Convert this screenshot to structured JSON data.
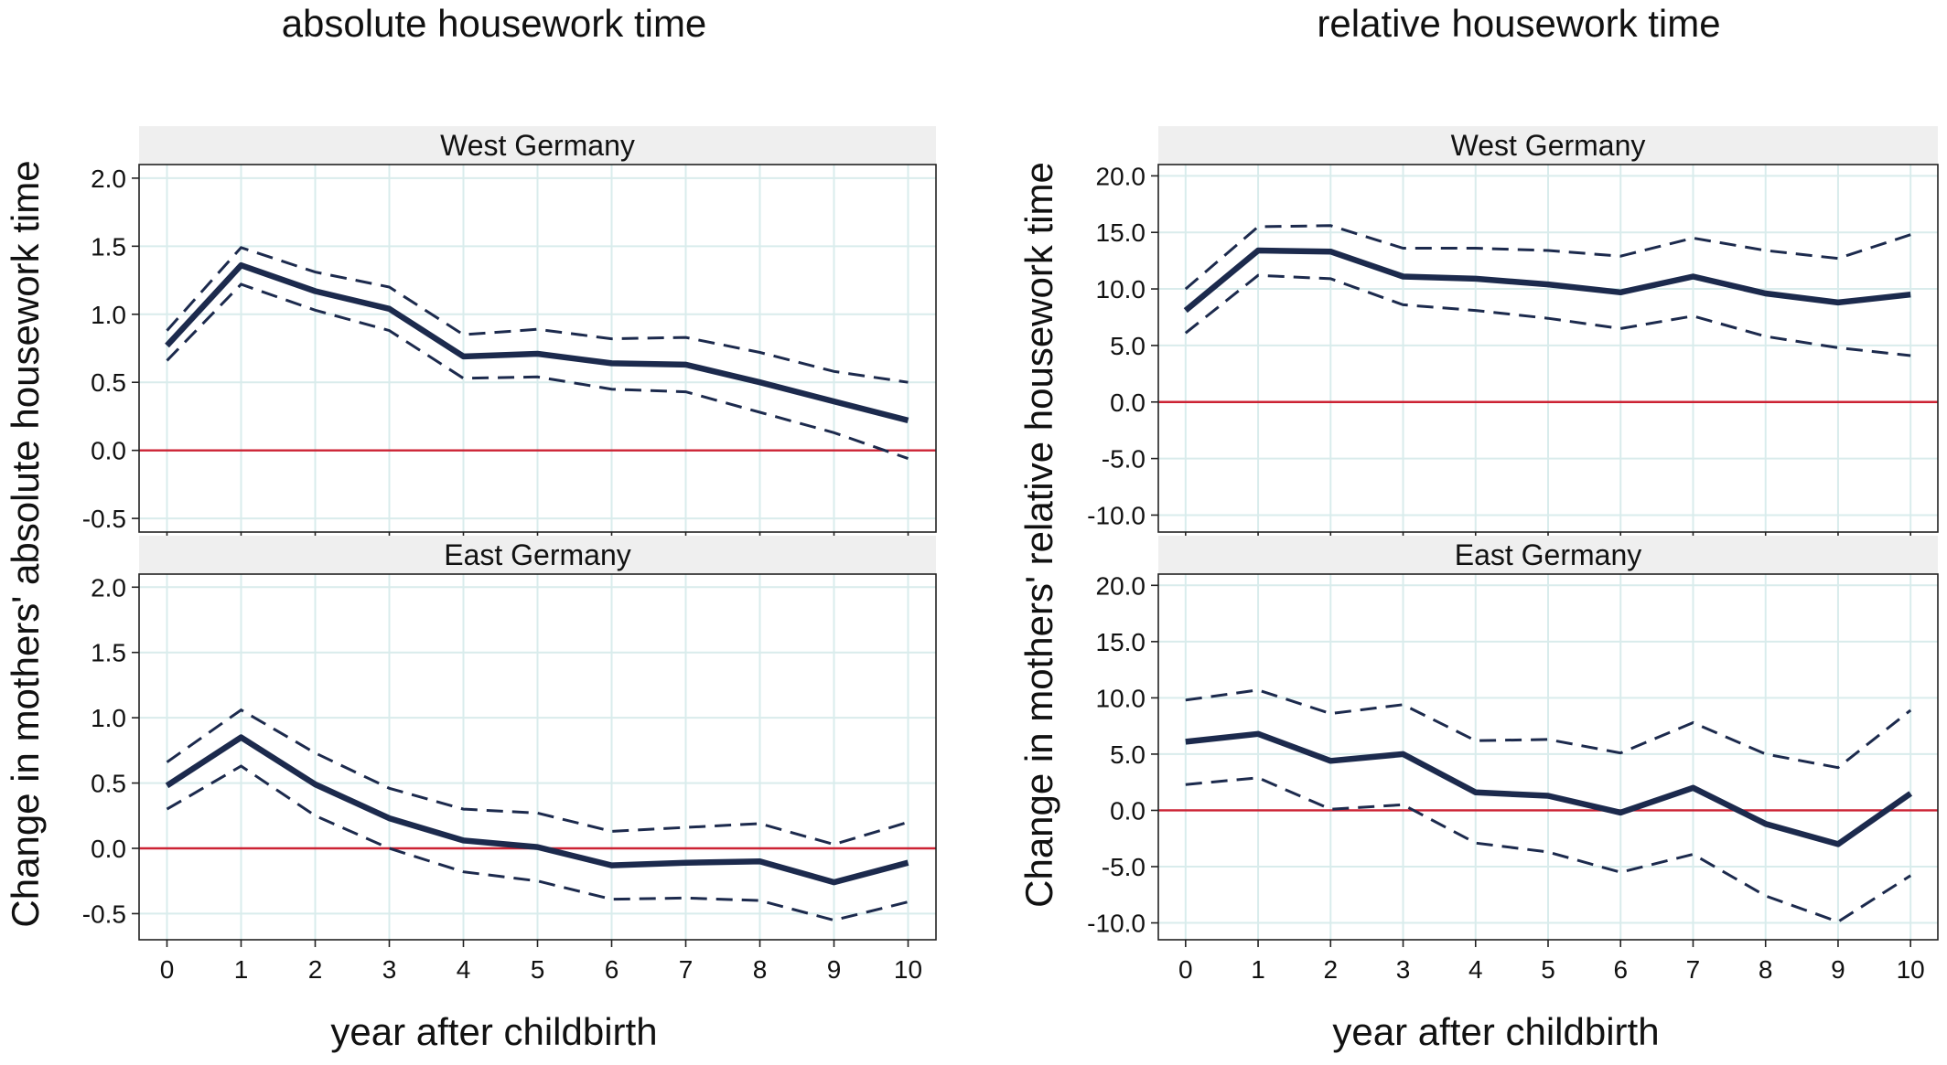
{
  "figure": {
    "left_title": "absolute housework time",
    "right_title": "relative housework time",
    "left_ylabel": "Change in mothers' absolute housework time",
    "right_ylabel": "Change in mothers' relative housework time",
    "xlabel": "year after childbirth"
  },
  "colors": {
    "estimate": "#1c2a4d",
    "confidence_band": "#1c2a4d",
    "reference_line": "#cc2233",
    "grid": "#d9ecec",
    "strip": "#efefef"
  },
  "chart_data": [
    {
      "type": "line",
      "panel": "West Germany",
      "column": "absolute housework time",
      "x": [
        0,
        1,
        2,
        3,
        4,
        5,
        6,
        7,
        8,
        9,
        10
      ],
      "ylim": [
        -0.6,
        2.1
      ],
      "yticks": [
        2.0,
        1.5,
        1.0,
        0.5,
        0.0,
        -0.5
      ],
      "ytick_labels": [
        "2.0",
        "1.5",
        "1.0",
        "0.5",
        "0.0",
        "-0.5"
      ],
      "reference_y": 0,
      "series": [
        {
          "role": "estimate",
          "values": [
            0.77,
            1.36,
            1.17,
            1.04,
            0.69,
            0.71,
            0.64,
            0.63,
            0.5,
            0.36,
            0.22
          ]
        },
        {
          "role": "upper",
          "values": [
            0.88,
            1.49,
            1.31,
            1.2,
            0.85,
            0.89,
            0.82,
            0.83,
            0.72,
            0.58,
            0.5
          ]
        },
        {
          "role": "lower",
          "values": [
            0.66,
            1.22,
            1.03,
            0.88,
            0.53,
            0.54,
            0.45,
            0.43,
            0.28,
            0.13,
            -0.06
          ]
        }
      ]
    },
    {
      "type": "line",
      "panel": "East Germany",
      "column": "absolute housework time",
      "x": [
        0,
        1,
        2,
        3,
        4,
        5,
        6,
        7,
        8,
        9,
        10
      ],
      "ylim": [
        -0.7,
        2.1
      ],
      "yticks": [
        2.0,
        1.5,
        1.0,
        0.5,
        0.0,
        -0.5
      ],
      "ytick_labels": [
        "2.0",
        "1.5",
        "1.0",
        "0.5",
        "0.0",
        "-0.5"
      ],
      "reference_y": 0,
      "series": [
        {
          "role": "estimate",
          "values": [
            0.48,
            0.85,
            0.49,
            0.23,
            0.06,
            0.01,
            -0.13,
            -0.11,
            -0.1,
            -0.26,
            -0.11
          ]
        },
        {
          "role": "upper",
          "values": [
            0.66,
            1.06,
            0.73,
            0.46,
            0.3,
            0.27,
            0.13,
            0.16,
            0.19,
            0.03,
            0.2
          ]
        },
        {
          "role": "lower",
          "values": [
            0.3,
            0.63,
            0.25,
            0.0,
            -0.18,
            -0.25,
            -0.39,
            -0.38,
            -0.4,
            -0.55,
            -0.41
          ]
        }
      ]
    },
    {
      "type": "line",
      "panel": "West Germany",
      "column": "relative housework time",
      "x": [
        0,
        1,
        2,
        3,
        4,
        5,
        6,
        7,
        8,
        9,
        10
      ],
      "ylim": [
        -11.5,
        21.0
      ],
      "yticks": [
        20.0,
        15.0,
        10.0,
        5.0,
        0.0,
        -5.0,
        -10.0
      ],
      "ytick_labels": [
        "20.0",
        "15.0",
        "10.0",
        "5.0",
        "0.0",
        "-5.0",
        "-10.0"
      ],
      "reference_y": 0,
      "series": [
        {
          "role": "estimate",
          "values": [
            8.1,
            13.4,
            13.3,
            11.1,
            10.9,
            10.4,
            9.7,
            11.1,
            9.6,
            8.8,
            9.5
          ]
        },
        {
          "role": "upper",
          "values": [
            10.0,
            15.5,
            15.6,
            13.6,
            13.6,
            13.4,
            12.9,
            14.5,
            13.4,
            12.7,
            14.8
          ]
        },
        {
          "role": "lower",
          "values": [
            6.1,
            11.2,
            10.9,
            8.6,
            8.1,
            7.4,
            6.5,
            7.6,
            5.8,
            4.8,
            4.1
          ]
        }
      ]
    },
    {
      "type": "line",
      "panel": "East Germany",
      "column": "relative housework time",
      "x": [
        0,
        1,
        2,
        3,
        4,
        5,
        6,
        7,
        8,
        9,
        10
      ],
      "ylim": [
        -11.5,
        21.0
      ],
      "yticks": [
        20.0,
        15.0,
        10.0,
        5.0,
        0.0,
        -5.0,
        -10.0
      ],
      "ytick_labels": [
        "20.0",
        "15.0",
        "10.0",
        "5.0",
        "0.0",
        "-5.0",
        "-10.0"
      ],
      "reference_y": 0,
      "series": [
        {
          "role": "estimate",
          "values": [
            6.1,
            6.8,
            4.4,
            5.0,
            1.6,
            1.3,
            -0.2,
            2.0,
            -1.2,
            -3.0,
            1.5
          ]
        },
        {
          "role": "upper",
          "values": [
            9.8,
            10.7,
            8.6,
            9.4,
            6.2,
            6.3,
            5.1,
            7.8,
            5.0,
            3.8,
            8.9
          ]
        },
        {
          "role": "lower",
          "values": [
            2.3,
            2.9,
            0.1,
            0.5,
            -2.9,
            -3.7,
            -5.5,
            -3.9,
            -7.6,
            -9.9,
            -5.8
          ]
        }
      ]
    }
  ]
}
